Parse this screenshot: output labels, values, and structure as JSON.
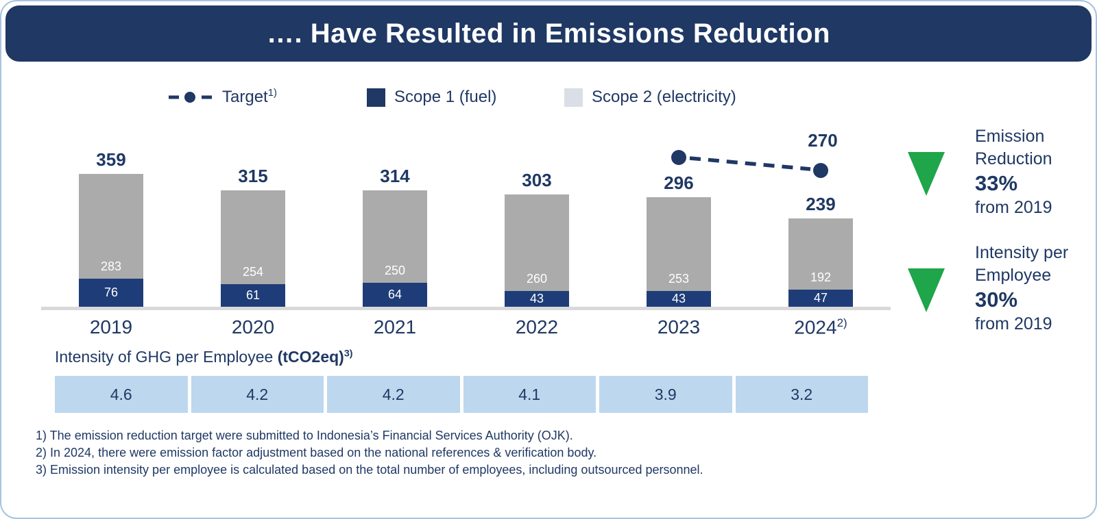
{
  "header": {
    "title": "…. Have Resulted in Emissions Reduction"
  },
  "legend": {
    "target": {
      "label": "Target",
      "sup": "1)"
    },
    "scope1": {
      "label": "Scope 1 (fuel)",
      "color": "#1F3864"
    },
    "scope2": {
      "label": "Scope 2 (electricity)",
      "color": "#D9DEE7"
    }
  },
  "chart_data": {
    "type": "bar",
    "stacked": true,
    "categories": [
      "2019",
      "2020",
      "2021",
      "2022",
      "2023",
      "2024"
    ],
    "category_sups": [
      "",
      "",
      "",
      "",
      "",
      "2)"
    ],
    "series": [
      {
        "name": "Scope 1 (fuel)",
        "color": "#1E3D78",
        "values": [
          76,
          61,
          64,
          43,
          43,
          47
        ]
      },
      {
        "name": "Scope 2 (electricity)",
        "color": "#ABABAB",
        "values": [
          283,
          254,
          250,
          260,
          253,
          192
        ]
      }
    ],
    "totals": [
      359,
      315,
      314,
      303,
      296,
      239
    ],
    "target_series": {
      "name": "Target",
      "style": "dashed-line-with-dots",
      "points": [
        {
          "category": "2023",
          "value": null,
          "label": ""
        },
        {
          "category": "2024",
          "value": 270,
          "label": "270"
        }
      ]
    },
    "ylim": [
      0,
      400
    ],
    "grid": false,
    "legend_position": "top",
    "value_labels": "totals above bars, segment values inside bars"
  },
  "intensity": {
    "title": "Intensity of GHG per Employee ",
    "title_bold": "(tCO2eq)",
    "title_sup": "3)",
    "values": [
      "4.6",
      "4.2",
      "4.2",
      "4.1",
      "3.9",
      "3.2"
    ]
  },
  "stats": [
    {
      "lines": [
        "Emission",
        "Reduction"
      ],
      "value": "33%",
      "suffix": "from 2019"
    },
    {
      "lines": [
        "Intensity per",
        "Employee"
      ],
      "value": "30%",
      "suffix": "from 2019"
    }
  ],
  "footnotes": [
    "1) The emission reduction target were submitted to Indonesia’s Financial Services Authority (OJK).",
    "2) In 2024, there were emission factor adjustment based on the national references & verification body.",
    "3) Emission intensity per employee is calculated based on the total number of employees, including outsourced personnel."
  ],
  "colors": {
    "navy": "#1F3864",
    "bar_blue": "#1E3D78",
    "bar_gray": "#ABABAB",
    "legend_scope2": "#D9DEE7",
    "table_cell": "#BDD7EE",
    "green": "#1FA54A",
    "axis_line": "#D9D9D9",
    "slide_border": "#A8C3DF"
  }
}
